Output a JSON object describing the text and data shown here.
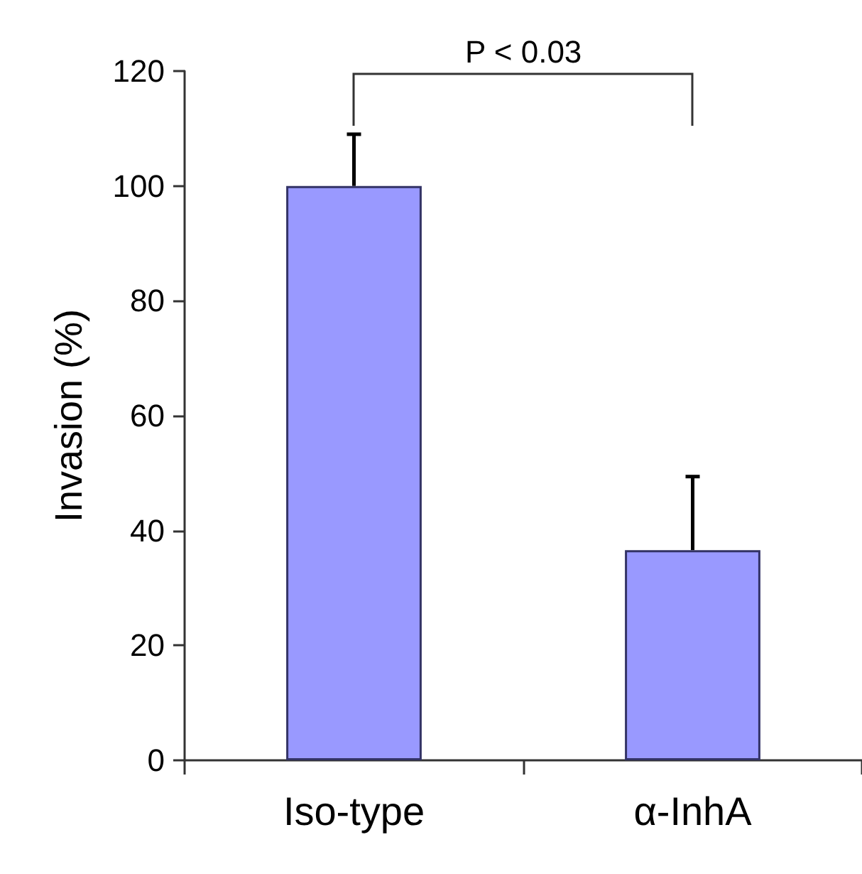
{
  "chart_data": {
    "type": "bar",
    "ylabel": "Invasion (%)",
    "categories": [
      "Iso-type",
      "α-InhA"
    ],
    "values": [
      100,
      36.6
    ],
    "color": "#9999ff",
    "errors": [
      [
        100,
        109
      ],
      [
        36.6,
        49.4
      ]
    ],
    "ylim": [
      0,
      120
    ],
    "yticks": [
      0,
      20,
      40,
      60,
      80,
      100,
      120
    ],
    "grid": false,
    "annotations": [
      "P < 0.03"
    ]
  }
}
